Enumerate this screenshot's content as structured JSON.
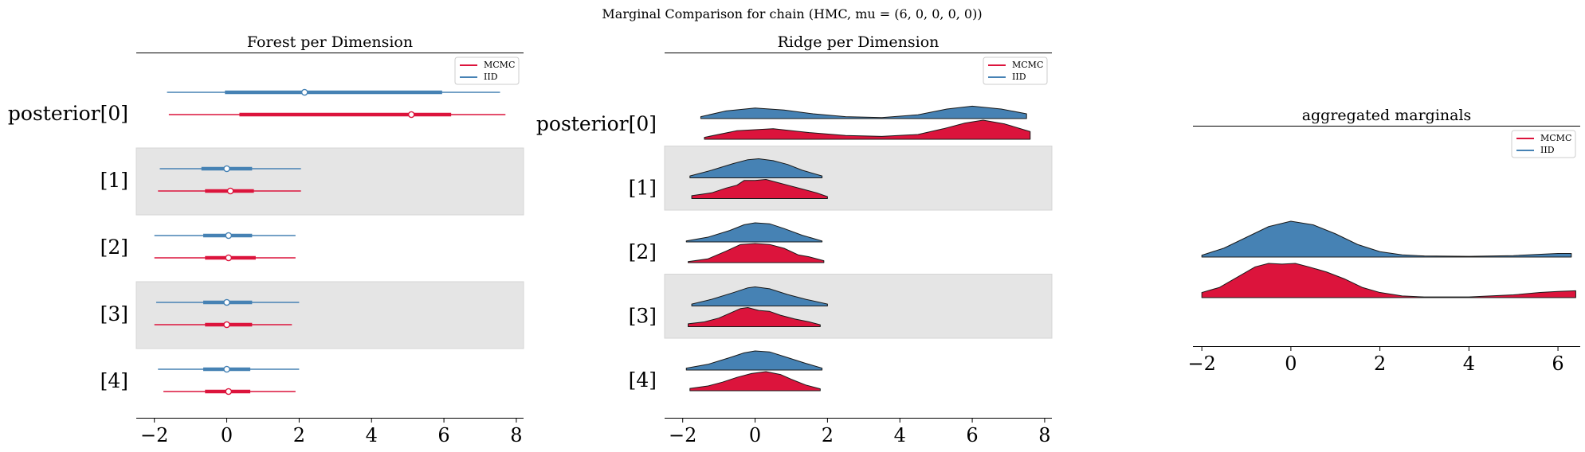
{
  "figure": {
    "suptitle": "Marginal Comparison for chain (HMC, mu = (6, 0, 0, 0, 0))"
  },
  "colors": {
    "mcmc": "#DC143C",
    "iid": "#4682B4",
    "band": "#e5e5e5"
  },
  "legend": {
    "labels": [
      "MCMC",
      "IID"
    ]
  },
  "chart_data": [
    {
      "type": "forest",
      "title": "Forest per Dimension",
      "xlim": [
        -2.5,
        8.2
      ],
      "xticks": [
        -2,
        0,
        2,
        4,
        6,
        8
      ],
      "xtick_labels": [
        "−2",
        "0",
        "2",
        "4",
        "6",
        "8"
      ],
      "rows": [
        "posterior[0]",
        "[1]",
        "[2]",
        "[3]",
        "[4]"
      ],
      "legend_position": "top-right",
      "series": [
        {
          "name": "MCMC",
          "color": "#DC143C",
          "rows": [
            {
              "hdi94": [
                -1.6,
                7.7
              ],
              "iqr": [
                0.35,
                6.2
              ],
              "median": 5.1
            },
            {
              "hdi94": [
                -1.9,
                2.05
              ],
              "iqr": [
                -0.6,
                0.75
              ],
              "median": 0.1
            },
            {
              "hdi94": [
                -2.0,
                1.9
              ],
              "iqr": [
                -0.6,
                0.8
              ],
              "median": 0.05
            },
            {
              "hdi94": [
                -2.0,
                1.8
              ],
              "iqr": [
                -0.6,
                0.7
              ],
              "median": 0.0
            },
            {
              "hdi94": [
                -1.75,
                1.9
              ],
              "iqr": [
                -0.6,
                0.65
              ],
              "median": 0.05
            }
          ]
        },
        {
          "name": "IID",
          "color": "#4682B4",
          "rows": [
            {
              "hdi94": [
                -1.65,
                7.55
              ],
              "iqr": [
                -0.05,
                5.95
              ],
              "median": 2.15
            },
            {
              "hdi94": [
                -1.85,
                2.05
              ],
              "iqr": [
                -0.7,
                0.7
              ],
              "median": 0.0
            },
            {
              "hdi94": [
                -2.0,
                1.9
              ],
              "iqr": [
                -0.65,
                0.7
              ],
              "median": 0.05
            },
            {
              "hdi94": [
                -1.95,
                2.0
              ],
              "iqr": [
                -0.65,
                0.7
              ],
              "median": 0.0
            },
            {
              "hdi94": [
                -1.9,
                2.0
              ],
              "iqr": [
                -0.65,
                0.65
              ],
              "median": 0.0
            }
          ]
        }
      ]
    },
    {
      "type": "ridgeline",
      "title": "Ridge per Dimension",
      "xlim": [
        -2.5,
        8.2
      ],
      "xticks": [
        -2,
        0,
        2,
        4,
        6,
        8
      ],
      "xtick_labels": [
        "−2",
        "0",
        "2",
        "4",
        "6",
        "8"
      ],
      "rows": [
        "posterior[0]",
        "[1]",
        "[2]",
        "[3]",
        "[4]"
      ],
      "legend_position": "top-right",
      "series": [
        {
          "name": "MCMC",
          "color": "#DC143C",
          "rows": [
            {
              "x": [
                -1.4,
                -0.5,
                0.5,
                1.5,
                2.5,
                3.5,
                4.5,
                5.2,
                5.8,
                6.3,
                6.9,
                7.6
              ],
              "y": [
                0.1,
                0.45,
                0.55,
                0.35,
                0.2,
                0.15,
                0.25,
                0.55,
                0.85,
                1.0,
                0.8,
                0.4
              ]
            },
            {
              "x": [
                -1.75,
                -1.2,
                -0.8,
                -0.5,
                -0.3,
                0.0,
                0.3,
                0.6,
                0.9,
                1.3,
                1.7,
                2.0
              ],
              "y": [
                0.15,
                0.3,
                0.55,
                0.7,
                0.95,
                0.95,
                1.0,
                0.85,
                0.7,
                0.5,
                0.3,
                0.1
              ]
            },
            {
              "x": [
                -1.85,
                -1.3,
                -0.8,
                -0.4,
                0.0,
                0.4,
                0.8,
                1.2,
                1.5,
                1.9
              ],
              "y": [
                0.05,
                0.2,
                0.6,
                0.95,
                1.0,
                0.95,
                0.75,
                0.4,
                0.3,
                0.1
              ]
            },
            {
              "x": [
                -1.85,
                -1.4,
                -1.0,
                -0.7,
                -0.4,
                -0.2,
                0.1,
                0.4,
                0.7,
                1.1,
                1.5,
                1.8
              ],
              "y": [
                0.15,
                0.25,
                0.45,
                0.7,
                0.95,
                1.0,
                0.85,
                0.8,
                0.6,
                0.4,
                0.25,
                0.1
              ]
            },
            {
              "x": [
                -1.8,
                -1.3,
                -0.9,
                -0.5,
                -0.1,
                0.3,
                0.7,
                1.0,
                1.4,
                1.8
              ],
              "y": [
                0.12,
                0.25,
                0.45,
                0.7,
                0.9,
                1.0,
                0.85,
                0.6,
                0.3,
                0.1
              ]
            }
          ]
        },
        {
          "name": "IID",
          "color": "#4682B4",
          "rows": [
            {
              "x": [
                -1.5,
                -0.8,
                0.0,
                0.8,
                1.6,
                2.5,
                3.5,
                4.5,
                5.3,
                6.0,
                6.8,
                7.5
              ],
              "y": [
                0.1,
                0.4,
                0.55,
                0.45,
                0.25,
                0.1,
                0.05,
                0.2,
                0.5,
                0.65,
                0.5,
                0.25
              ]
            },
            {
              "x": [
                -1.8,
                -1.2,
                -0.6,
                -0.2,
                0.1,
                0.5,
                0.9,
                1.3,
                1.85
              ],
              "y": [
                0.1,
                0.4,
                0.75,
                0.95,
                1.0,
                0.9,
                0.7,
                0.4,
                0.1
              ]
            },
            {
              "x": [
                -1.9,
                -1.3,
                -0.7,
                -0.3,
                0.0,
                0.4,
                0.8,
                1.3,
                1.85
              ],
              "y": [
                0.05,
                0.25,
                0.6,
                0.9,
                1.0,
                0.95,
                0.7,
                0.35,
                0.05
              ]
            },
            {
              "x": [
                -1.75,
                -1.2,
                -0.6,
                -0.2,
                0.0,
                0.4,
                0.9,
                1.4,
                2.0
              ],
              "y": [
                0.1,
                0.35,
                0.7,
                0.95,
                1.0,
                0.9,
                0.6,
                0.35,
                0.1
              ]
            },
            {
              "x": [
                -1.9,
                -1.3,
                -0.7,
                -0.3,
                0.0,
                0.4,
                0.9,
                1.4,
                1.85
              ],
              "y": [
                0.1,
                0.3,
                0.65,
                0.9,
                1.0,
                0.95,
                0.65,
                0.35,
                0.1
              ]
            }
          ]
        }
      ]
    },
    {
      "type": "ridgeline",
      "title": "aggregated marginals",
      "xlim": [
        -2.2,
        6.5
      ],
      "xticks": [
        -2,
        0,
        2,
        4,
        6
      ],
      "xtick_labels": [
        "−2",
        "0",
        "2",
        "4",
        "6"
      ],
      "legend_position": "top-right",
      "series": [
        {
          "name": "MCMC",
          "color": "#DC143C",
          "x": [
            -2.0,
            -1.6,
            -1.2,
            -0.8,
            -0.5,
            -0.2,
            0.1,
            0.4,
            0.8,
            1.2,
            1.6,
            2.0,
            2.5,
            3.0,
            4.0,
            5.0,
            5.6,
            6.0,
            6.4
          ],
          "y": [
            0.15,
            0.3,
            0.6,
            0.9,
            1.0,
            0.98,
            1.0,
            0.9,
            0.75,
            0.55,
            0.3,
            0.15,
            0.05,
            0.02,
            0.02,
            0.08,
            0.15,
            0.18,
            0.2
          ]
        },
        {
          "name": "IID",
          "color": "#4682B4",
          "x": [
            -2.0,
            -1.5,
            -1.0,
            -0.5,
            0.0,
            0.5,
            1.0,
            1.5,
            2.0,
            2.5,
            3.0,
            4.0,
            5.0,
            6.0,
            6.3
          ],
          "y": [
            0.05,
            0.25,
            0.55,
            0.85,
            1.0,
            0.9,
            0.65,
            0.35,
            0.15,
            0.06,
            0.03,
            0.02,
            0.04,
            0.1,
            0.1
          ]
        }
      ]
    }
  ]
}
